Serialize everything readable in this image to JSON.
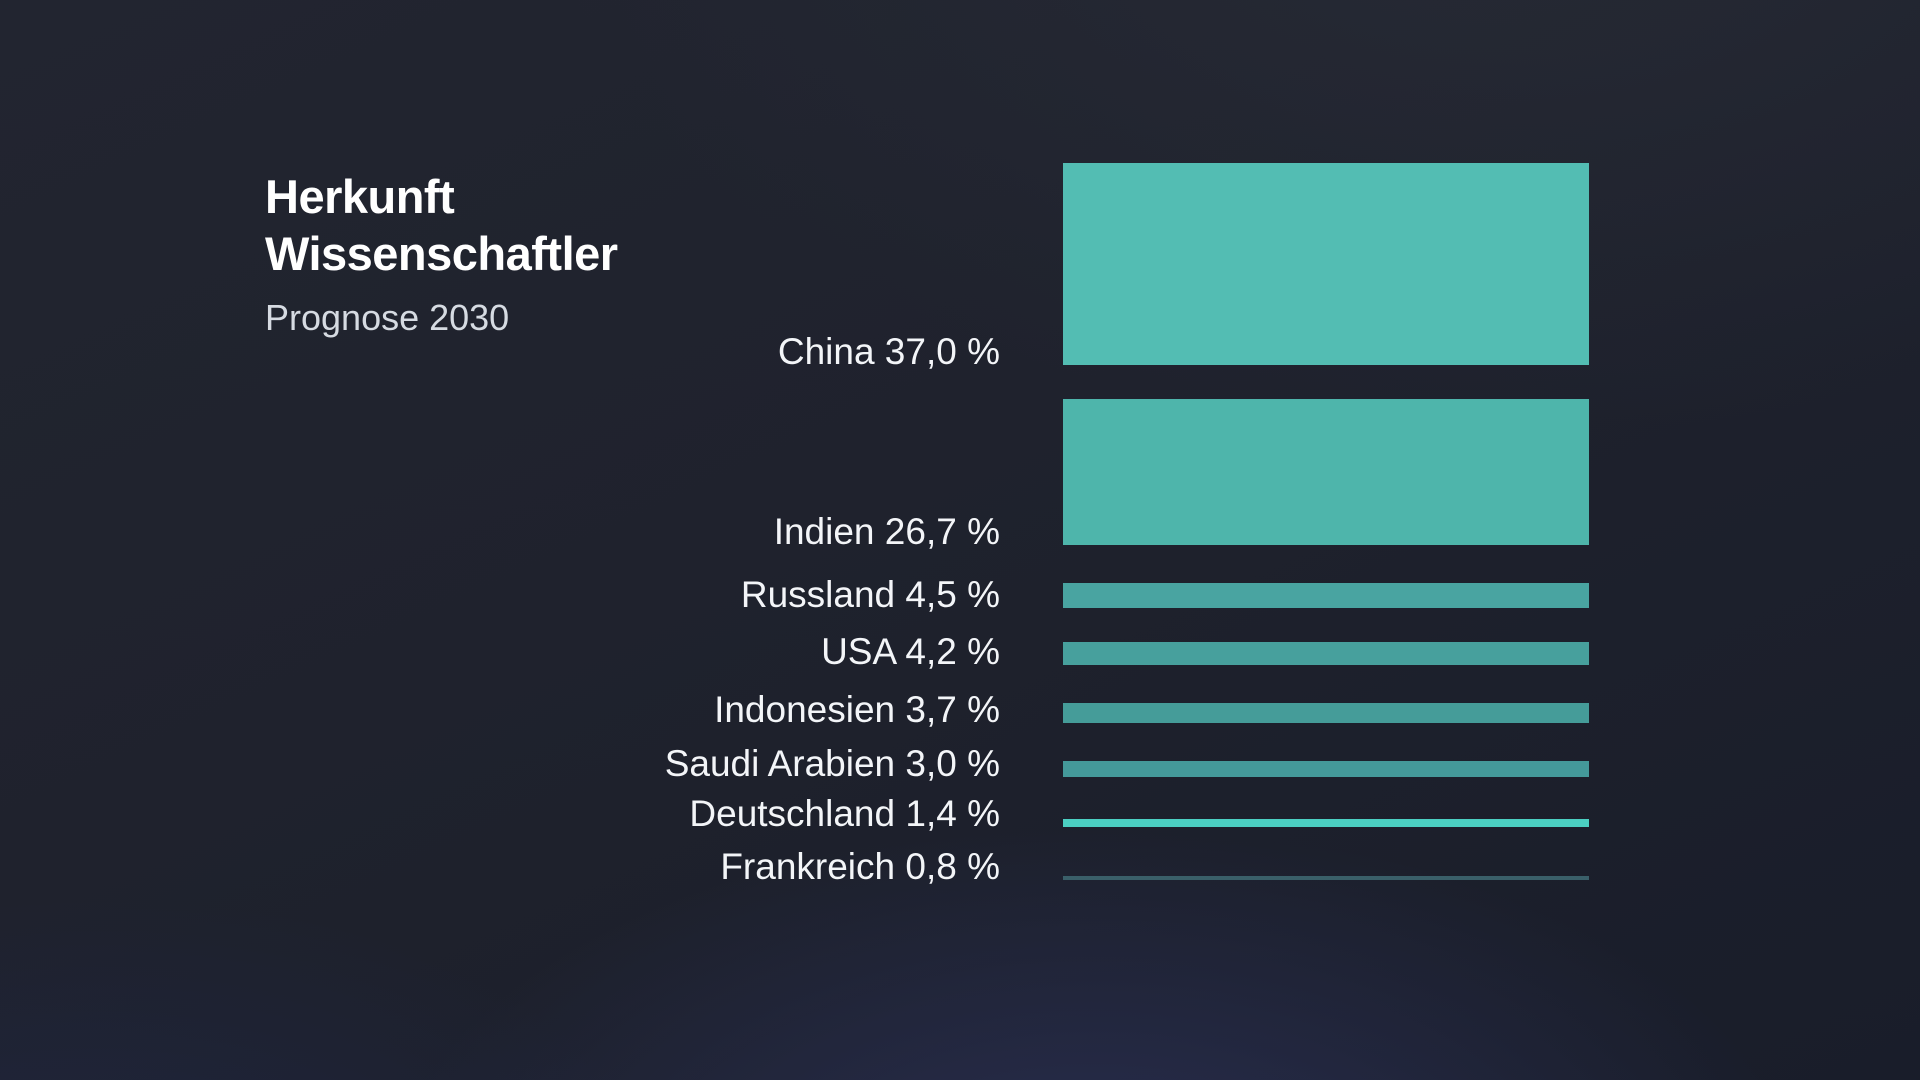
{
  "header": {
    "title_line1": "Herkunft",
    "title_line2": "Wissenschaftler",
    "subtitle": "Prognose 2030"
  },
  "chart_data": {
    "type": "bar",
    "title": "Herkunft Wissenschaftler",
    "subtitle": "Prognose 2030",
    "unit": "%",
    "categories": [
      "China",
      "Indien",
      "Russland",
      "USA",
      "Indonesien",
      "Saudi Arabien",
      "Deutschland",
      "Frankreich"
    ],
    "values": [
      37.0,
      26.7,
      4.5,
      4.2,
      3.7,
      3.0,
      1.4,
      0.8
    ],
    "labels": [
      "China 37,0 %",
      "Indien 26,7 %",
      "Russland 4,5 %",
      "USA 4,2 %",
      "Indonesien 3,7 %",
      "Saudi Arabien 3,0 %",
      "Deutschland 1,4 %",
      "Frankreich 0,8 %"
    ],
    "bar_colors": [
      "#53bdb3",
      "#4eb5ab",
      "#49a4a1",
      "#47a09d",
      "#459c99",
      "#44999a",
      "#4bcfc2",
      "#3a5f69"
    ],
    "encoding": "all bars share equal length; bar thickness is proportional to value",
    "legend": false,
    "grid": false,
    "xlabel": "",
    "ylabel": ""
  },
  "style": {
    "background_base": "#1e212c",
    "background_glow": "#2b3157",
    "accent_teal": "#53bdb3",
    "title_color": "#ffffff",
    "subtitle_color": "#d6dbe2",
    "label_color": "#f3f5f8"
  }
}
